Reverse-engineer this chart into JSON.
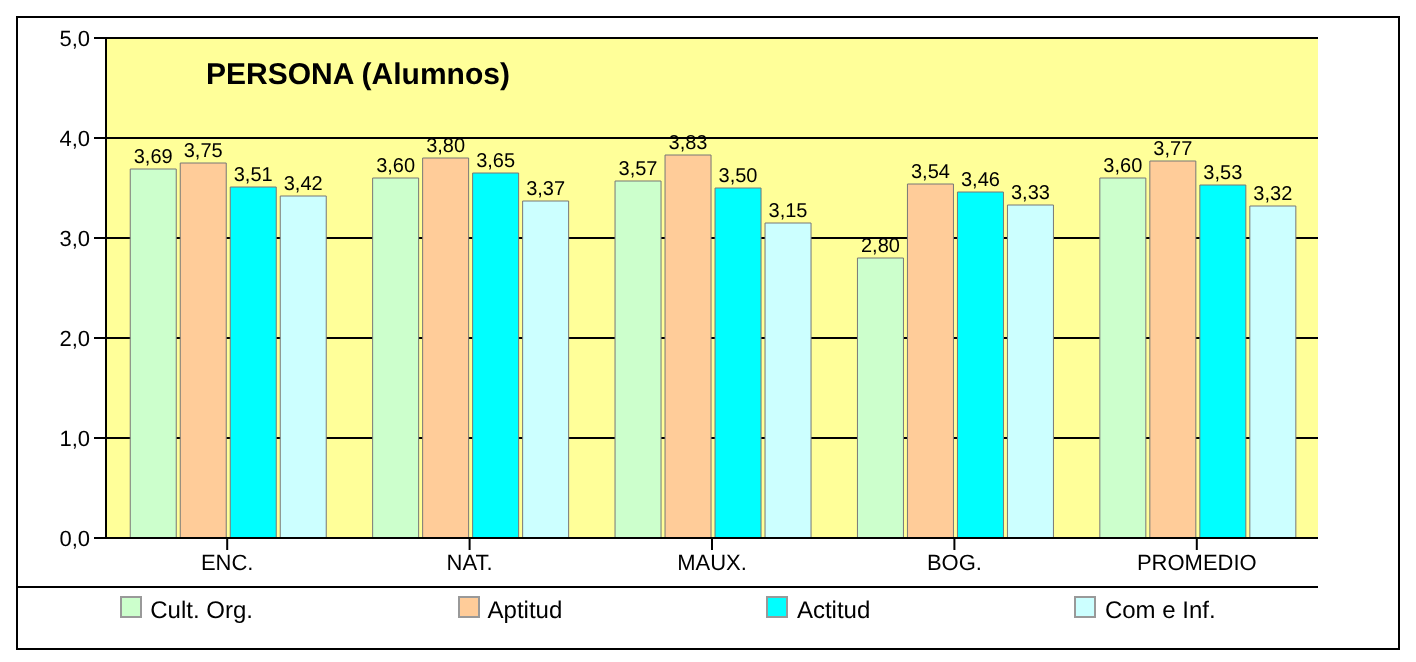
{
  "chart_data": {
    "type": "bar",
    "title": "PERSONA (Alumnos)",
    "categories": [
      "ENC.",
      "NAT.",
      "MAUX.",
      "BOG.",
      "PROMEDIO"
    ],
    "series": [
      {
        "name": "Cult. Org.",
        "color": "#ccffcc",
        "values": [
          3.69,
          3.6,
          3.57,
          2.8,
          3.6
        ],
        "value_labels": [
          "3,69",
          "3,60",
          "3,57",
          "2,80",
          "3,60"
        ]
      },
      {
        "name": "Aptitud",
        "color": "#ffcc99",
        "values": [
          3.75,
          3.8,
          3.83,
          3.54,
          3.77
        ],
        "value_labels": [
          "3,75",
          "3,80",
          "3,83",
          "3,54",
          "3,77"
        ]
      },
      {
        "name": "Actitud",
        "color": "#00ffff",
        "values": [
          3.51,
          3.65,
          3.5,
          3.46,
          3.53
        ],
        "value_labels": [
          "3,51",
          "3,65",
          "3,50",
          "3,46",
          "3,53"
        ]
      },
      {
        "name": "Com e Inf.",
        "color": "#ccffff",
        "values": [
          3.42,
          3.37,
          3.15,
          3.33,
          3.32
        ],
        "value_labels": [
          "3,42",
          "3,37",
          "3,15",
          "3,33",
          "3,32"
        ]
      }
    ],
    "ylim": [
      0,
      5
    ],
    "yticks": [
      {
        "value": 0,
        "label": "0,0"
      },
      {
        "value": 1,
        "label": "1,0"
      },
      {
        "value": 2,
        "label": "2,0"
      },
      {
        "value": 3,
        "label": "3,0"
      },
      {
        "value": 4,
        "label": "4,0"
      },
      {
        "value": 5,
        "label": "5,0"
      }
    ],
    "grid": "y",
    "legend": "bottom"
  }
}
